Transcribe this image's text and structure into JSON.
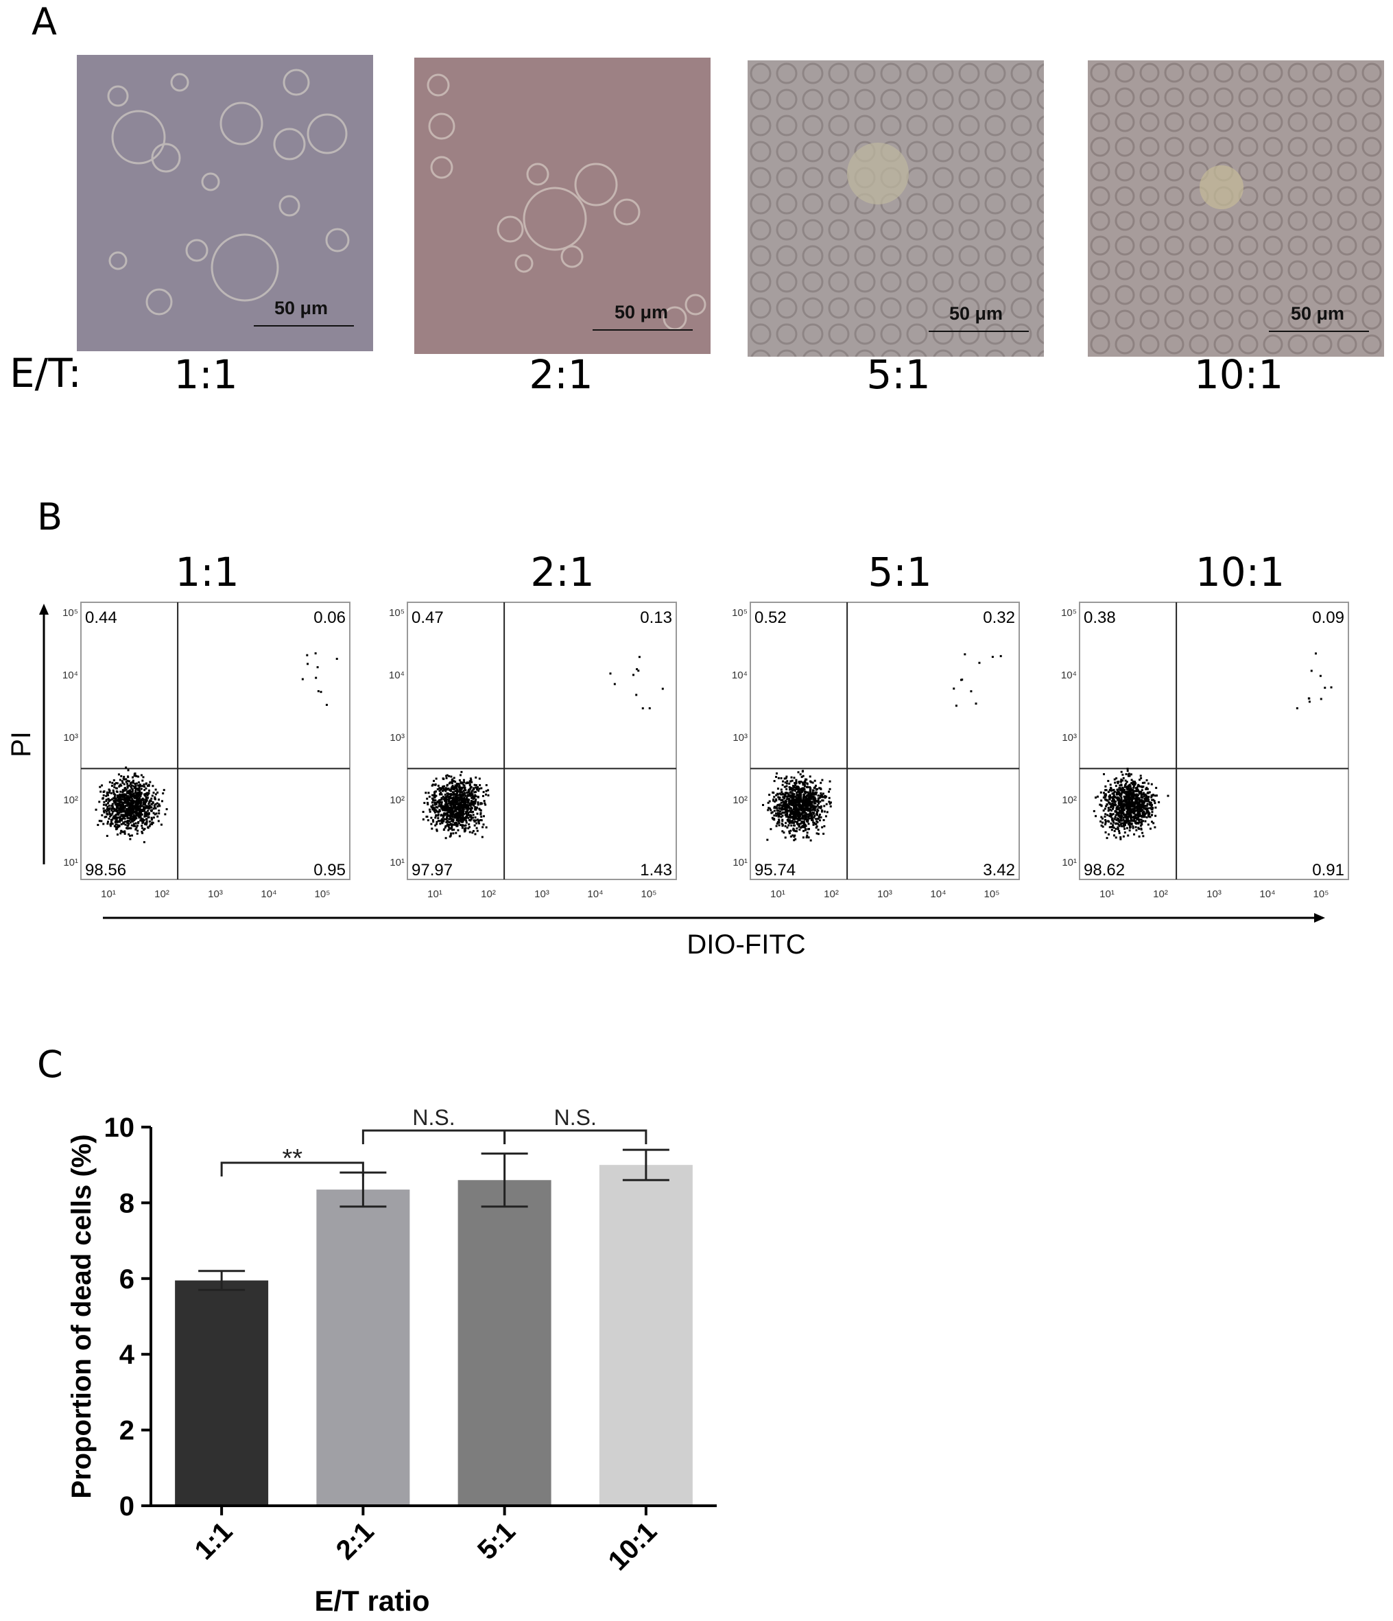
{
  "panels": {
    "a": "A",
    "b": "B",
    "c": "C"
  },
  "panel_a": {
    "row_label": "E/T:",
    "scale_bar": "50 μm",
    "images": [
      {
        "ratio": "1:1",
        "tint": "#8e8798"
      },
      {
        "ratio": "2:1",
        "tint": "#9d8184"
      },
      {
        "ratio": "5:1",
        "tint": "#a69e9e"
      },
      {
        "ratio": "10:1",
        "tint": "#a79c9b"
      }
    ]
  },
  "panel_b": {
    "y_axis_label": "PI",
    "x_axis_label": "DIO-FITC",
    "y_tick_labels": [
      "10¹",
      "10²",
      "10³",
      "10⁴",
      "10⁵"
    ],
    "x_tick_labels": [
      "10¹",
      "10²",
      "10³",
      "10⁴",
      "10⁵"
    ],
    "plots": [
      {
        "title": "1:1",
        "ul": "0.44",
        "ur": "0.06",
        "ll": "98.56",
        "lr": "0.95"
      },
      {
        "title": "2:1",
        "ul": "0.47",
        "ur": "0.13",
        "ll": "97.97",
        "lr": "1.43"
      },
      {
        "title": "5:1",
        "ul": "0.52",
        "ur": "0.32",
        "ll": "95.74",
        "lr": "3.42"
      },
      {
        "title": "10:1",
        "ul": "0.38",
        "ur": "0.09",
        "ll": "98.62",
        "lr": "0.91"
      }
    ]
  },
  "chart_data": {
    "type": "bar",
    "categories": [
      "1:1",
      "2:1",
      "5:1",
      "10:1"
    ],
    "values": [
      5.95,
      8.35,
      8.6,
      9.0
    ],
    "errors": [
      0.25,
      0.45,
      0.7,
      0.4
    ],
    "bar_colors": [
      "#303030",
      "#a0a0a5",
      "#7d7d7d",
      "#d0d0d0"
    ],
    "xlabel": "E/T  ratio",
    "ylabel": "Proportion of dead cells (%)",
    "ylim": [
      0,
      10
    ],
    "yticks": [
      "0",
      "2",
      "4",
      "6",
      "8",
      "10"
    ],
    "significance": [
      {
        "from": "1:1",
        "to": "2:1",
        "label": "**"
      },
      {
        "from": "2:1",
        "to": "5:1",
        "label": "N.S."
      },
      {
        "from": "5:1",
        "to": "10:1",
        "label": "N.S."
      }
    ]
  }
}
